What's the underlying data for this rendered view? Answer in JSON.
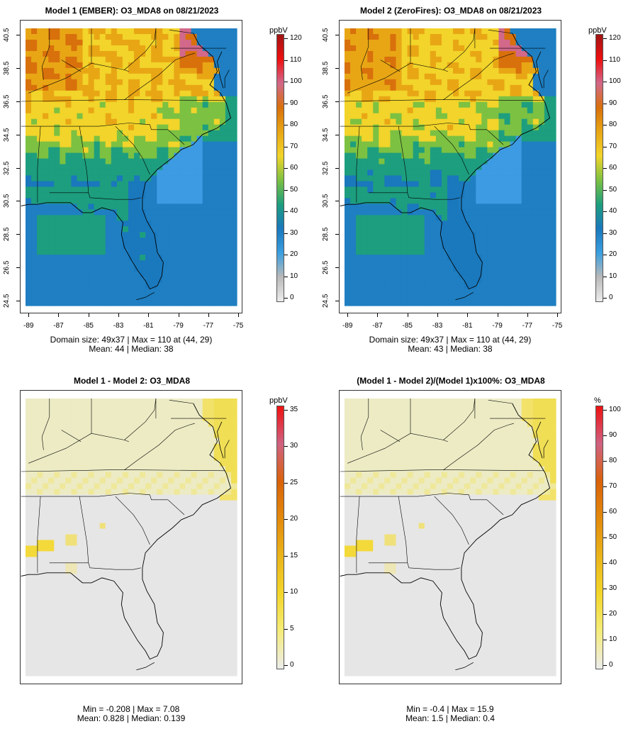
{
  "panels": [
    {
      "id": "m1",
      "title": "Model 1 (EMBER): O3_MDA8 on 08/21/2023",
      "stats_line1": "Domain size: 49x37 | Max = 110 at (44, 29)",
      "stats_line2": "Mean: 44 |  Median: 38",
      "unit": "ppbV",
      "colorbar_ticks": [
        "0",
        "10",
        "20",
        "30",
        "40",
        "50",
        "60",
        "70",
        "80",
        "90",
        "100",
        "110",
        "120"
      ],
      "x_ticks": [
        "-89",
        "-87",
        "-85",
        "-83",
        "-81",
        "-79",
        "-77",
        "-75"
      ],
      "y_ticks": [
        "24.5",
        "26.5",
        "28.5",
        "30.5",
        "32.5",
        "34.5",
        "36.5",
        "38.5",
        "40.5"
      ]
    },
    {
      "id": "m2",
      "title": "Model 2 (ZeroFires): O3_MDA8 on 08/21/2023",
      "stats_line1": "Domain size: 49x37 | Max = 110 at (44, 29)",
      "stats_line2": "Mean: 43 |  Median: 38",
      "unit": "ppbV",
      "colorbar_ticks": [
        "0",
        "10",
        "20",
        "30",
        "40",
        "50",
        "60",
        "70",
        "80",
        "90",
        "100",
        "110",
        "120"
      ],
      "x_ticks": [
        "-89",
        "-87",
        "-85",
        "-83",
        "-81",
        "-79",
        "-77",
        "-75"
      ],
      "y_ticks": [
        "24.5",
        "26.5",
        "28.5",
        "30.5",
        "32.5",
        "34.5",
        "36.5",
        "38.5",
        "40.5"
      ]
    },
    {
      "id": "diff",
      "title": "Model 1 - Model 2: O3_MDA8",
      "stats_line1": "Min = -0.208 | Max = 7.08",
      "stats_line2": "Mean: 0.828 |  Median: 0.139",
      "unit": "ppbV",
      "colorbar_ticks": [
        "0",
        "5",
        "10",
        "15",
        "20",
        "25",
        "30",
        "35"
      ]
    },
    {
      "id": "pct",
      "title": "(Model 1 - Model 2)/(Model 1)x100%: O3_MDA8",
      "stats_line1": "Min = -0.4 | Max = 15.9",
      "stats_line2": "Mean: 1.5 |  Median: 0.4",
      "unit": "%",
      "colorbar_ticks": [
        "0",
        "10",
        "20",
        "30",
        "40",
        "50",
        "60",
        "70",
        "80",
        "90",
        "100"
      ]
    }
  ],
  "colors": {
    "conc_scale": [
      "#ececec",
      "#b9b9b9",
      "#3a9fe0",
      "#1a78bd",
      "#1d9e7e",
      "#7cc142",
      "#f2d42a",
      "#e8a615",
      "#d8700c",
      "#d2688a",
      "#ee0f0f",
      "#a21414"
    ],
    "diff_scale": [
      "#ececec",
      "#f5ec7a",
      "#f3d62a",
      "#eab41b",
      "#e38a0c",
      "#d9620a",
      "#cf6282",
      "#ee1111"
    ],
    "ocean_conc": "#1f7fc2",
    "ocean_conc_light": "#3c9be2",
    "diff_background": "#e6e6e6",
    "diff_light_yellow": "#ecebc4",
    "diff_yellow": "#f3e26a"
  }
}
